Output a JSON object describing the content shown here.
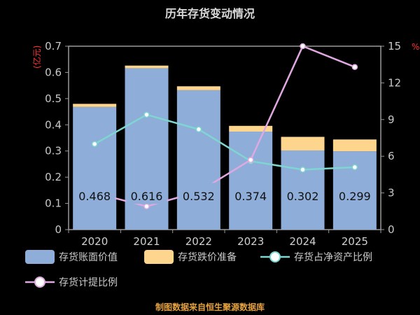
{
  "title": "历年存货变动情况",
  "footer": "制图数据来自恒生聚源数据库",
  "y_left_unit": "(亿元)",
  "y_right_unit": "%",
  "chart_data": {
    "type": "bar",
    "categories": [
      "2020",
      "2021",
      "2022",
      "2023",
      "2024",
      "2025"
    ],
    "series": [
      {
        "name": "存货账面价值",
        "type": "bar",
        "axis": "left",
        "stack": "inv",
        "color": "#8eadd9",
        "values": [
          0.468,
          0.616,
          0.532,
          0.374,
          0.302,
          0.299
        ],
        "labels": [
          "0.468",
          "0.616",
          "0.532",
          "0.374",
          "0.302",
          "0.299"
        ]
      },
      {
        "name": "存货跌价准备",
        "type": "bar",
        "axis": "left",
        "stack": "inv",
        "color": "#fdd58c",
        "values": [
          0.012,
          0.01,
          0.015,
          0.022,
          0.052,
          0.045
        ]
      },
      {
        "name": "存货占净资产比例",
        "type": "line",
        "axis": "right",
        "color": "#7fd5d0",
        "values": [
          7.0,
          9.4,
          8.2,
          5.6,
          4.9,
          5.1
        ]
      },
      {
        "name": "存货计提比例",
        "type": "line",
        "axis": "right",
        "color": "#e0a8e0",
        "values": [
          3.0,
          1.9,
          3.1,
          5.7,
          15.0,
          13.3
        ]
      }
    ],
    "y_left": {
      "min": 0,
      "max": 0.7,
      "ticks": [
        "0",
        "0.1",
        "0.2",
        "0.3",
        "0.4",
        "0.5",
        "0.6",
        "0.7"
      ]
    },
    "y_right": {
      "min": 0,
      "max": 15,
      "ticks": [
        "0",
        "3",
        "6",
        "9",
        "12",
        "15"
      ]
    },
    "legend_position": "bottom",
    "grid": false
  }
}
